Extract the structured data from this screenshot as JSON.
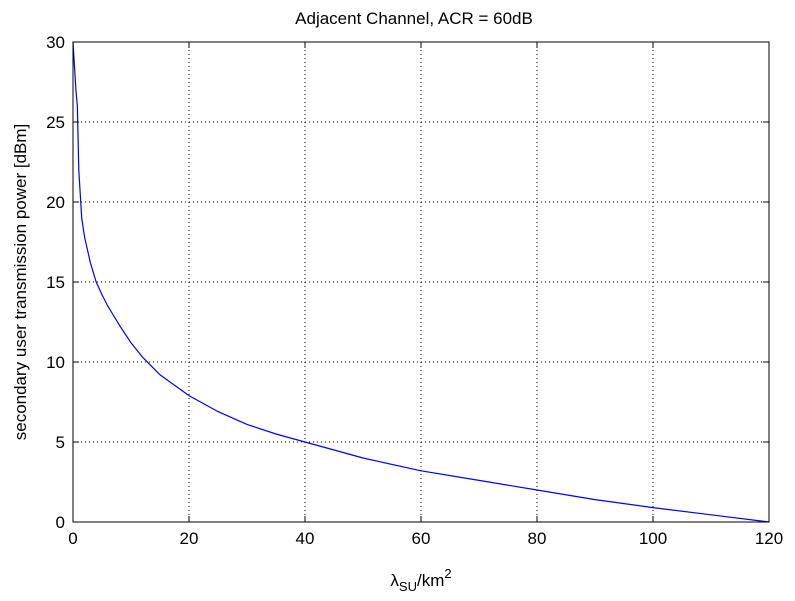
{
  "chart_data": {
    "type": "line",
    "title": "Adjacent Channel, ACR = 60dB",
    "xlabel": {
      "base": "λ",
      "sub": "SU",
      "suffix": "/km",
      "sup": "2"
    },
    "ylabel": "secondary user transmission power [dBm]",
    "xlim": [
      0,
      120
    ],
    "ylim": [
      0,
      30
    ],
    "xticks": [
      0,
      20,
      40,
      60,
      80,
      100,
      120
    ],
    "yticks": [
      0,
      5,
      10,
      15,
      20,
      25,
      30
    ],
    "xtick_labels": [
      "0",
      "20",
      "40",
      "60",
      "80",
      "100",
      "120"
    ],
    "ytick_labels": [
      "0",
      "5",
      "10",
      "15",
      "20",
      "25",
      "30"
    ],
    "grid": true,
    "grid_style": "dotted",
    "colors": {
      "line": "#0000ff",
      "axes": "#000000",
      "grid": "#000000"
    },
    "series": [
      {
        "x": [
          0,
          0.25,
          0.5,
          0.75,
          1,
          1.5,
          2,
          3,
          4,
          5,
          6,
          8,
          10,
          12,
          15,
          20,
          25,
          30,
          35,
          40,
          50,
          60,
          70,
          80,
          90,
          100,
          110,
          120
        ],
        "values": [
          30,
          28.5,
          27,
          26,
          22,
          19,
          17.8,
          16.2,
          15,
          14.2,
          13.5,
          12.3,
          11.2,
          10.3,
          9.2,
          7.9,
          6.9,
          6.1,
          5.5,
          5.0,
          4.0,
          3.2,
          2.6,
          2.0,
          1.4,
          0.9,
          0.45,
          0
        ]
      }
    ]
  }
}
